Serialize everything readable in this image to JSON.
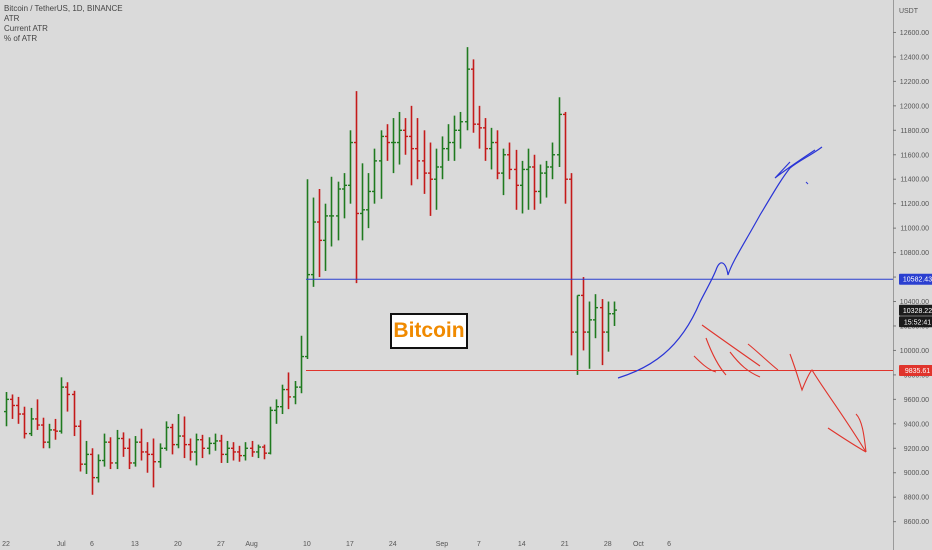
{
  "legend": {
    "title": "Bitcoin / TetherUS, 1D, BINANCE",
    "line2": "ATR",
    "line3": "Current ATR",
    "line4": "% of ATR"
  },
  "watermark": "Bitcoin",
  "currency_label": "USDT",
  "colors": {
    "up": "#1f7a1f",
    "down": "#c41a1a",
    "resistance": "#2a3fd0",
    "support": "#e0342c",
    "current_tag": "#1b1b1b",
    "draw_blue": "#2a35d6",
    "draw_red": "#e0342c"
  },
  "chart_data": {
    "type": "ohlc",
    "symbol": "Bitcoin / TetherUS",
    "timeframe": "1D",
    "exchange": "BINANCE",
    "ylim": [
      8450,
      12800
    ],
    "y_ticks": [
      8600,
      8800,
      9000,
      9200,
      9400,
      9600,
      9800,
      10000,
      10200,
      10400,
      10600,
      10800,
      11000,
      11200,
      11400,
      11600,
      11800,
      12000,
      12200,
      12400,
      12600
    ],
    "x_ticks": [
      {
        "day": 0,
        "label": "22"
      },
      {
        "day": 9,
        "label": "Jul"
      },
      {
        "day": 14,
        "label": "6"
      },
      {
        "day": 21,
        "label": "13"
      },
      {
        "day": 28,
        "label": "20"
      },
      {
        "day": 35,
        "label": "27"
      },
      {
        "day": 40,
        "label": "Aug"
      },
      {
        "day": 49,
        "label": "10"
      },
      {
        "day": 56,
        "label": "17"
      },
      {
        "day": 63,
        "label": "24"
      },
      {
        "day": 71,
        "label": "Sep"
      },
      {
        "day": 77,
        "label": "7"
      },
      {
        "day": 84,
        "label": "14"
      },
      {
        "day": 91,
        "label": "21"
      },
      {
        "day": 98,
        "label": "28"
      },
      {
        "day": 103,
        "label": "Oct"
      },
      {
        "day": 108,
        "label": "6"
      }
    ],
    "candles": [
      [
        9500,
        9660,
        9380,
        9600
      ],
      [
        9600,
        9640,
        9440,
        9550
      ],
      [
        9550,
        9620,
        9400,
        9480
      ],
      [
        9480,
        9540,
        9280,
        9320
      ],
      [
        9320,
        9530,
        9300,
        9440
      ],
      [
        9440,
        9600,
        9350,
        9390
      ],
      [
        9390,
        9450,
        9200,
        9250
      ],
      [
        9250,
        9400,
        9200,
        9350
      ],
      [
        9350,
        9440,
        9270,
        9340
      ],
      [
        9340,
        9780,
        9320,
        9700
      ],
      [
        9700,
        9740,
        9500,
        9640
      ],
      [
        9640,
        9670,
        9300,
        9380
      ],
      [
        9380,
        9430,
        9010,
        9070
      ],
      [
        9070,
        9260,
        8990,
        9150
      ],
      [
        9150,
        9200,
        8820,
        8960
      ],
      [
        8960,
        9150,
        8920,
        9100
      ],
      [
        9100,
        9320,
        9050,
        9250
      ],
      [
        9250,
        9290,
        9030,
        9080
      ],
      [
        9080,
        9350,
        9030,
        9280
      ],
      [
        9280,
        9330,
        9130,
        9200
      ],
      [
        9200,
        9280,
        9030,
        9080
      ],
      [
        9080,
        9300,
        9050,
        9250
      ],
      [
        9250,
        9360,
        9100,
        9170
      ],
      [
        9170,
        9250,
        9000,
        9150
      ],
      [
        9150,
        9280,
        8880,
        9090
      ],
      [
        9090,
        9240,
        9040,
        9200
      ],
      [
        9200,
        9420,
        9180,
        9370
      ],
      [
        9370,
        9400,
        9150,
        9230
      ],
      [
        9230,
        9480,
        9200,
        9300
      ],
      [
        9300,
        9460,
        9120,
        9230
      ],
      [
        9230,
        9280,
        9100,
        9170
      ],
      [
        9170,
        9320,
        9060,
        9270
      ],
      [
        9270,
        9310,
        9120,
        9200
      ],
      [
        9200,
        9290,
        9150,
        9240
      ],
      [
        9240,
        9320,
        9180,
        9260
      ],
      [
        9260,
        9310,
        9080,
        9150
      ],
      [
        9150,
        9260,
        9080,
        9200
      ],
      [
        9200,
        9250,
        9100,
        9170
      ],
      [
        9170,
        9220,
        9090,
        9140
      ],
      [
        9140,
        9250,
        9100,
        9200
      ],
      [
        9200,
        9260,
        9130,
        9170
      ],
      [
        9170,
        9230,
        9120,
        9210
      ],
      [
        9210,
        9230,
        9110,
        9160
      ],
      [
        9160,
        9540,
        9150,
        9510
      ],
      [
        9510,
        9600,
        9400,
        9540
      ],
      [
        9540,
        9720,
        9480,
        9680
      ],
      [
        9680,
        9820,
        9520,
        9620
      ],
      [
        9620,
        9750,
        9560,
        9700
      ],
      [
        9700,
        10120,
        9650,
        9950
      ],
      [
        9950,
        11400,
        9930,
        10620
      ],
      [
        10620,
        11250,
        10520,
        11050
      ],
      [
        11050,
        11320,
        10600,
        10900
      ],
      [
        10900,
        11200,
        10650,
        11100
      ],
      [
        11100,
        11420,
        10850,
        11100
      ],
      [
        11100,
        11380,
        10900,
        11320
      ],
      [
        11320,
        11450,
        11080,
        11350
      ],
      [
        11350,
        11800,
        11200,
        11700
      ],
      [
        11700,
        12120,
        10550,
        11120
      ],
      [
        11120,
        11530,
        10900,
        11150
      ],
      [
        11150,
        11450,
        11000,
        11300
      ],
      [
        11300,
        11650,
        11200,
        11550
      ],
      [
        11550,
        11800,
        11240,
        11750
      ],
      [
        11750,
        11850,
        11550,
        11700
      ],
      [
        11700,
        11900,
        11450,
        11700
      ],
      [
        11700,
        11950,
        11520,
        11800
      ],
      [
        11800,
        11900,
        11600,
        11750
      ],
      [
        11750,
        12000,
        11350,
        11650
      ],
      [
        11650,
        11900,
        11400,
        11550
      ],
      [
        11550,
        11800,
        11280,
        11450
      ],
      [
        11450,
        11700,
        11100,
        11400
      ],
      [
        11400,
        11650,
        11150,
        11500
      ],
      [
        11500,
        11750,
        11400,
        11650
      ],
      [
        11650,
        11850,
        11550,
        11700
      ],
      [
        11700,
        11920,
        11550,
        11800
      ],
      [
        11800,
        11950,
        11650,
        11870
      ],
      [
        11870,
        12480,
        11800,
        12300
      ],
      [
        12300,
        12380,
        11780,
        11850
      ],
      [
        11850,
        12000,
        11650,
        11820
      ],
      [
        11820,
        11900,
        11550,
        11650
      ],
      [
        11650,
        11820,
        11480,
        11700
      ],
      [
        11700,
        11800,
        11400,
        11450
      ],
      [
        11450,
        11650,
        11270,
        11600
      ],
      [
        11600,
        11700,
        11400,
        11480
      ],
      [
        11480,
        11640,
        11150,
        11350
      ],
      [
        11350,
        11550,
        11120,
        11480
      ],
      [
        11480,
        11650,
        11150,
        11500
      ],
      [
        11500,
        11600,
        11150,
        11300
      ],
      [
        11300,
        11520,
        11200,
        11450
      ],
      [
        11450,
        11550,
        11250,
        11500
      ],
      [
        11500,
        11700,
        11400,
        11600
      ],
      [
        11600,
        12070,
        11500,
        11930
      ],
      [
        11930,
        11950,
        11200,
        11400
      ],
      [
        11400,
        11450,
        9960,
        10150
      ],
      [
        10150,
        10450,
        9800,
        10450
      ],
      [
        10450,
        10600,
        10000,
        10150
      ],
      [
        10150,
        10400,
        9850,
        10250
      ],
      [
        10250,
        10460,
        10100,
        10350
      ],
      [
        10350,
        10420,
        9880,
        10150
      ],
      [
        10150,
        10400,
        9990,
        10300
      ],
      [
        10300,
        10400,
        10200,
        10330
      ]
    ]
  },
  "lines": {
    "resistance": {
      "value": 10582.43,
      "label": "10582.43"
    },
    "support": {
      "value": 9835.61,
      "label": "9835.61"
    },
    "current": {
      "value": 10328.22,
      "label": "10328.22"
    },
    "countdown": {
      "label": "15:52:41"
    }
  }
}
